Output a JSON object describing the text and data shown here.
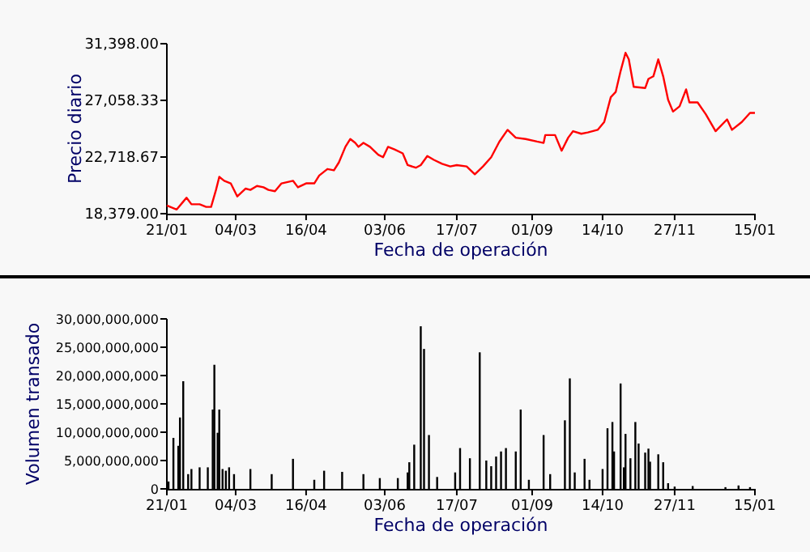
{
  "chart_data": [
    {
      "type": "line",
      "xlabel": "Fecha de operación",
      "ylabel": "Precio diario",
      "xlim": [
        "2001-01-21",
        "2002-01-15"
      ],
      "xticks": [
        {
          "value": "2001-01-21",
          "label": "21/01"
        },
        {
          "value": "2001-03-04",
          "label": "04/03"
        },
        {
          "value": "2001-04-16",
          "label": "16/04"
        },
        {
          "value": "2001-06-03",
          "label": "03/06"
        },
        {
          "value": "2001-07-17",
          "label": "17/07"
        },
        {
          "value": "2001-09-01",
          "label": "01/09"
        },
        {
          "value": "2001-10-14",
          "label": "14/10"
        },
        {
          "value": "2001-11-27",
          "label": "27/11"
        },
        {
          "value": "2002-01-15",
          "label": "15/01"
        }
      ],
      "ylim": [
        18379,
        31398
      ],
      "yticks": [
        {
          "value": 18379,
          "label": "18,379.00"
        },
        {
          "value": 22718.67,
          "label": "22,718.67"
        },
        {
          "value": 27058.33,
          "label": "27,058.33"
        },
        {
          "value": 31398,
          "label": "31,398.00"
        }
      ],
      "grid": false,
      "marker": "none",
      "line_style": "solid",
      "series": [
        {
          "color": "#ff0000",
          "x": [
            "2001-01-21",
            "2001-01-27",
            "2001-01-31",
            "2001-02-02",
            "2001-02-05",
            "2001-02-10",
            "2001-02-14",
            "2001-02-17",
            "2001-02-20",
            "2001-02-22",
            "2001-02-25",
            "2001-03-01",
            "2001-03-05",
            "2001-03-10",
            "2001-03-13",
            "2001-03-17",
            "2001-03-21",
            "2001-03-24",
            "2001-03-28",
            "2001-04-01",
            "2001-04-08",
            "2001-04-11",
            "2001-04-16",
            "2001-04-21",
            "2001-04-24",
            "2001-04-29",
            "2001-05-03",
            "2001-05-06",
            "2001-05-10",
            "2001-05-13",
            "2001-05-16",
            "2001-05-18",
            "2001-05-21",
            "2001-05-25",
            "2001-05-30",
            "2001-06-02",
            "2001-06-05",
            "2001-06-09",
            "2001-06-14",
            "2001-06-17",
            "2001-06-22",
            "2001-06-25",
            "2001-06-29",
            "2001-07-03",
            "2001-07-08",
            "2001-07-13",
            "2001-07-17",
            "2001-07-23",
            "2001-07-28",
            "2001-08-02",
            "2001-08-07",
            "2001-08-12",
            "2001-08-17",
            "2001-08-22",
            "2001-08-28",
            "2001-09-04",
            "2001-09-08",
            "2001-09-09",
            "2001-09-15",
            "2001-09-19",
            "2001-09-23",
            "2001-09-26",
            "2001-10-01",
            "2001-10-05",
            "2001-10-11",
            "2001-10-15",
            "2001-10-19",
            "2001-10-22",
            "2001-10-25",
            "2001-10-28",
            "2001-10-30",
            "2001-11-02",
            "2001-11-09",
            "2001-11-11",
            "2001-11-14",
            "2001-11-17",
            "2001-11-20",
            "2001-11-23",
            "2001-11-26",
            "2001-11-30",
            "2001-12-04",
            "2001-12-06",
            "2001-12-11",
            "2001-12-16",
            "2001-12-22",
            "2001-12-29",
            "2002-01-01",
            "2002-01-07",
            "2002-01-12",
            "2002-01-15"
          ],
          "values": [
            19000,
            18700,
            19300,
            19600,
            19100,
            19100,
            18900,
            18900,
            20200,
            21200,
            20900,
            20700,
            19700,
            20300,
            20200,
            20500,
            20400,
            20200,
            20100,
            20700,
            20900,
            20400,
            20700,
            20700,
            21300,
            21800,
            21700,
            22300,
            23500,
            24100,
            23800,
            23500,
            23800,
            23500,
            22900,
            22700,
            23500,
            23300,
            23000,
            22100,
            21900,
            22100,
            22800,
            22500,
            22200,
            22000,
            22100,
            22000,
            21400,
            22000,
            22700,
            23900,
            24800,
            24200,
            24100,
            23900,
            23800,
            24400,
            24400,
            23200,
            24200,
            24700,
            24500,
            24600,
            24800,
            25400,
            27300,
            27700,
            29300,
            30700,
            30200,
            28100,
            28000,
            28700,
            28900,
            30200,
            28900,
            27100,
            26200,
            26600,
            27900,
            26900,
            26900,
            26000,
            24700,
            25600,
            24800,
            25400,
            26100,
            26100
          ]
        }
      ]
    },
    {
      "type": "bar",
      "xlabel": "Fecha de operación",
      "ylabel": "Volumen transado",
      "xlim": [
        "2001-01-21",
        "2002-01-15"
      ],
      "xticks": [
        {
          "value": "2001-01-21",
          "label": "21/01"
        },
        {
          "value": "2001-03-04",
          "label": "04/03"
        },
        {
          "value": "2001-04-16",
          "label": "16/04"
        },
        {
          "value": "2001-06-03",
          "label": "03/06"
        },
        {
          "value": "2001-07-17",
          "label": "17/07"
        },
        {
          "value": "2001-09-01",
          "label": "01/09"
        },
        {
          "value": "2001-10-14",
          "label": "14/10"
        },
        {
          "value": "2001-11-27",
          "label": "27/11"
        },
        {
          "value": "2002-01-15",
          "label": "15/01"
        }
      ],
      "ylim": [
        0,
        30000000000
      ],
      "yticks": [
        {
          "value": 0,
          "label": "0"
        },
        {
          "value": 5000000000,
          "label": "5,000,000,000"
        },
        {
          "value": 10000000000,
          "label": "10,000,000,000"
        },
        {
          "value": 15000000000,
          "label": "15,000,000,000"
        },
        {
          "value": 20000000000,
          "label": "20,000,000,000"
        },
        {
          "value": 25000000000,
          "label": "25,000,000,000"
        },
        {
          "value": 30000000000,
          "label": "30,000,000,000"
        }
      ],
      "grid": false,
      "series": [
        {
          "color": "#000000",
          "x": [
            "2001-01-22",
            "2001-01-25",
            "2001-01-28",
            "2001-01-29",
            "2001-01-31",
            "2001-02-03",
            "2001-02-05",
            "2001-02-10",
            "2001-02-15",
            "2001-02-18",
            "2001-02-19",
            "2001-02-21",
            "2001-02-22",
            "2001-02-24",
            "2001-02-26",
            "2001-02-28",
            "2001-03-03",
            "2001-03-13",
            "2001-03-26",
            "2001-04-08",
            "2001-04-21",
            "2001-04-27",
            "2001-05-08",
            "2001-05-21",
            "2001-05-31",
            "2001-06-11",
            "2001-06-17",
            "2001-06-18",
            "2001-06-21",
            "2001-06-25",
            "2001-06-27",
            "2001-06-30",
            "2001-07-05",
            "2001-07-16",
            "2001-07-19",
            "2001-07-25",
            "2001-07-31",
            "2001-08-04",
            "2001-08-07",
            "2001-08-10",
            "2001-08-13",
            "2001-08-16",
            "2001-08-22",
            "2001-08-25",
            "2001-08-30",
            "2001-09-08",
            "2001-09-12",
            "2001-09-21",
            "2001-09-24",
            "2001-09-27",
            "2001-10-03",
            "2001-10-06",
            "2001-10-14",
            "2001-10-17",
            "2001-10-20",
            "2001-10-21",
            "2001-10-25",
            "2001-10-27",
            "2001-10-28",
            "2001-10-31",
            "2001-11-03",
            "2001-11-05",
            "2001-11-09",
            "2001-11-11",
            "2001-11-12",
            "2001-11-17",
            "2001-11-20",
            "2001-11-23",
            "2001-11-27",
            "2001-12-08",
            "2001-12-28",
            "2002-01-05",
            "2002-01-12"
          ],
          "values": [
            1300000000,
            9000000000,
            7600000000,
            12600000000,
            19000000000,
            2600000000,
            3500000000,
            3800000000,
            3800000000,
            14000000000,
            21900000000,
            9900000000,
            14000000000,
            3500000000,
            3200000000,
            3800000000,
            2600000000,
            3500000000,
            2600000000,
            5300000000,
            1600000000,
            3200000000,
            3000000000,
            2600000000,
            1900000000,
            1900000000,
            2900000000,
            4700000000,
            7800000000,
            28700000000,
            24700000000,
            9500000000,
            2100000000,
            2900000000,
            7200000000,
            5400000000,
            24100000000,
            5000000000,
            4000000000,
            5700000000,
            6600000000,
            7200000000,
            6600000000,
            14000000000,
            1600000000,
            9500000000,
            2600000000,
            12100000000,
            19500000000,
            2900000000,
            5300000000,
            1600000000,
            3500000000,
            10700000000,
            11800000000,
            6600000000,
            18600000000,
            3800000000,
            9700000000,
            5400000000,
            11800000000,
            8000000000,
            6400000000,
            7100000000,
            4800000000,
            6100000000,
            4700000000,
            1000000000,
            400000000,
            500000000,
            300000000,
            600000000,
            300000000
          ]
        }
      ]
    }
  ]
}
